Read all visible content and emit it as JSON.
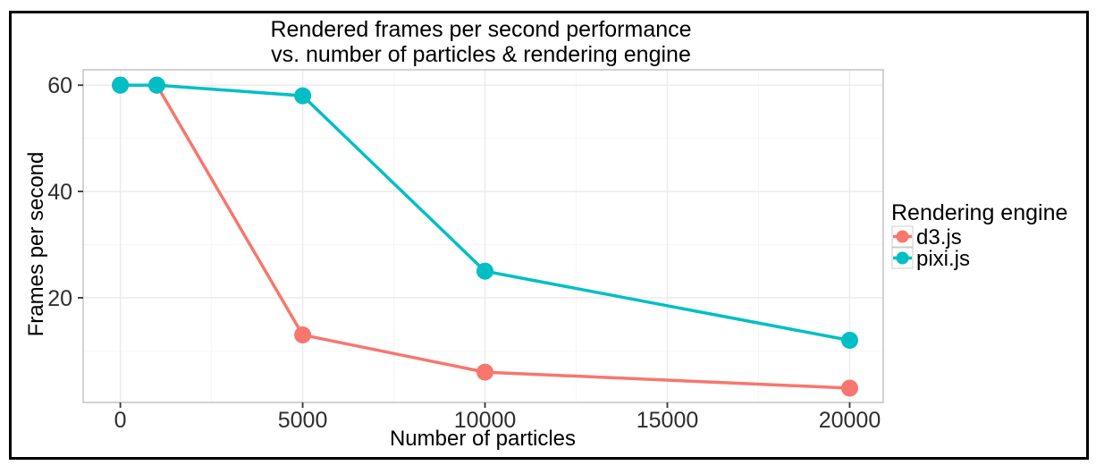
{
  "chart_data": {
    "type": "line",
    "title": "Rendered frames per second performance",
    "title_line2": "vs. number of particles & rendering engine",
    "xlabel": "Number of particles",
    "ylabel": "Frames per second",
    "xlim": [
      -1020,
      20920
    ],
    "ylim": [
      0.3,
      62.9
    ],
    "x_ticks": [
      0,
      5000,
      10000,
      15000,
      20000
    ],
    "x_tick_labels": [
      "0",
      "5000",
      "10000",
      "15000",
      "20000"
    ],
    "x_minor_ticks": [
      2500,
      7500,
      12500,
      17500
    ],
    "y_ticks": [
      20,
      40,
      60
    ],
    "y_tick_labels": [
      "20",
      "40",
      "60"
    ],
    "y_minor_ticks": [
      10,
      30,
      50
    ],
    "grid": "major+minor",
    "legend": {
      "title": "Rendering engine",
      "position": "right"
    },
    "series": [
      {
        "name": "d3.js",
        "color": "#F8766D",
        "x": [
          0,
          1000,
          5000,
          10000,
          20000
        ],
        "y": [
          60,
          60,
          13,
          6,
          3
        ]
      },
      {
        "name": "pixi.js",
        "color": "#00BFC4",
        "x": [
          0,
          1000,
          5000,
          10000,
          20000
        ],
        "y": [
          60,
          60,
          58,
          25,
          12
        ]
      }
    ]
  },
  "colors": {
    "figure_border": "#000000",
    "background": "#ffffff",
    "panel_background": "#ffffff",
    "panel_border": "#c3c3c3",
    "grid_major": "#ececec",
    "grid_minor": "#f6f6f6",
    "tick_mark": "#333333",
    "tick_label": "#2e2e2e",
    "title_text": "#000000",
    "legend_key_fill": "#ffffff",
    "legend_key_border": "#cccccc"
  }
}
